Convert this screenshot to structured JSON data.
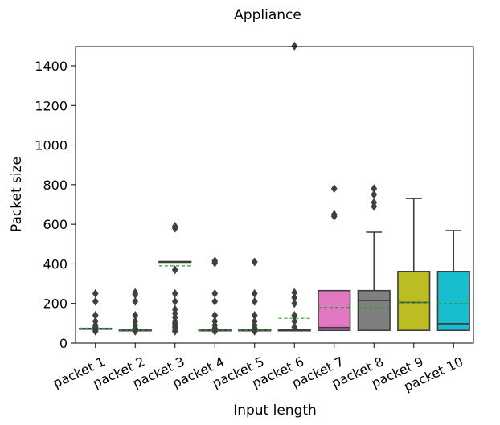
{
  "chart_data": {
    "type": "box",
    "title": "Appliance",
    "xlabel": "Input length",
    "ylabel": "Packet size",
    "ylim": [
      0,
      1500
    ],
    "yticks": [
      0,
      200,
      400,
      600,
      800,
      1000,
      1200,
      1400
    ],
    "grid": false,
    "categories": [
      "packet 1",
      "packet 2",
      "packet 3",
      "packet 4",
      "packet 5",
      "packet 6",
      "packet 7",
      "packet 8",
      "packet 9",
      "packet 10"
    ],
    "colors": [
      "#1f77b4",
      "#ff7f0e",
      "#2ca02c",
      "#d62728",
      "#9467bd",
      "#8c564b",
      "#e377c2",
      "#7f7f7f",
      "#bcbd22",
      "#17becf"
    ],
    "boxes": [
      {
        "q1": 70,
        "median": 72,
        "q3": 74,
        "whislo": 70,
        "whishi": 74,
        "mean": 75,
        "fliers": [
          60,
          70,
          80,
          90,
          110,
          140,
          210,
          250
        ]
      },
      {
        "q1": 62,
        "median": 64,
        "q3": 66,
        "whislo": 62,
        "whishi": 66,
        "mean": 65,
        "fliers": [
          60,
          75,
          90,
          110,
          140,
          210,
          245,
          255
        ]
      },
      {
        "q1": 410,
        "median": 410,
        "q3": 412,
        "whislo": 410,
        "whishi": 412,
        "mean": 390,
        "fliers": [
          60,
          70,
          80,
          90,
          100,
          110,
          130,
          150,
          170,
          210,
          250,
          370,
          580,
          590
        ]
      },
      {
        "q1": 62,
        "median": 64,
        "q3": 66,
        "whislo": 62,
        "whishi": 66,
        "mean": 65,
        "fliers": [
          60,
          75,
          90,
          110,
          140,
          210,
          250,
          405,
          415
        ]
      },
      {
        "q1": 62,
        "median": 64,
        "q3": 66,
        "whislo": 62,
        "whishi": 66,
        "mean": 65,
        "fliers": [
          60,
          75,
          90,
          110,
          140,
          210,
          250,
          410
        ]
      },
      {
        "q1": 64,
        "median": 64,
        "q3": 66,
        "whislo": 64,
        "whishi": 66,
        "mean": 125,
        "fliers": [
          80,
          110,
          140,
          200,
          230,
          255,
          1500
        ]
      },
      {
        "q1": 64,
        "median": 78,
        "q3": 265,
        "whislo": 64,
        "whishi": 265,
        "mean": 180,
        "fliers": [
          640,
          650,
          780
        ]
      },
      {
        "q1": 64,
        "median": 215,
        "q3": 265,
        "whislo": 64,
        "whishi": 560,
        "mean": 180,
        "fliers": [
          690,
          710,
          750,
          780
        ]
      },
      {
        "q1": 64,
        "median": 205,
        "q3": 362,
        "whislo": 64,
        "whishi": 730,
        "mean": 205,
        "fliers": []
      },
      {
        "q1": 64,
        "median": 98,
        "q3": 362,
        "whislo": 64,
        "whishi": 568,
        "mean": 200,
        "fliers": []
      }
    ]
  }
}
